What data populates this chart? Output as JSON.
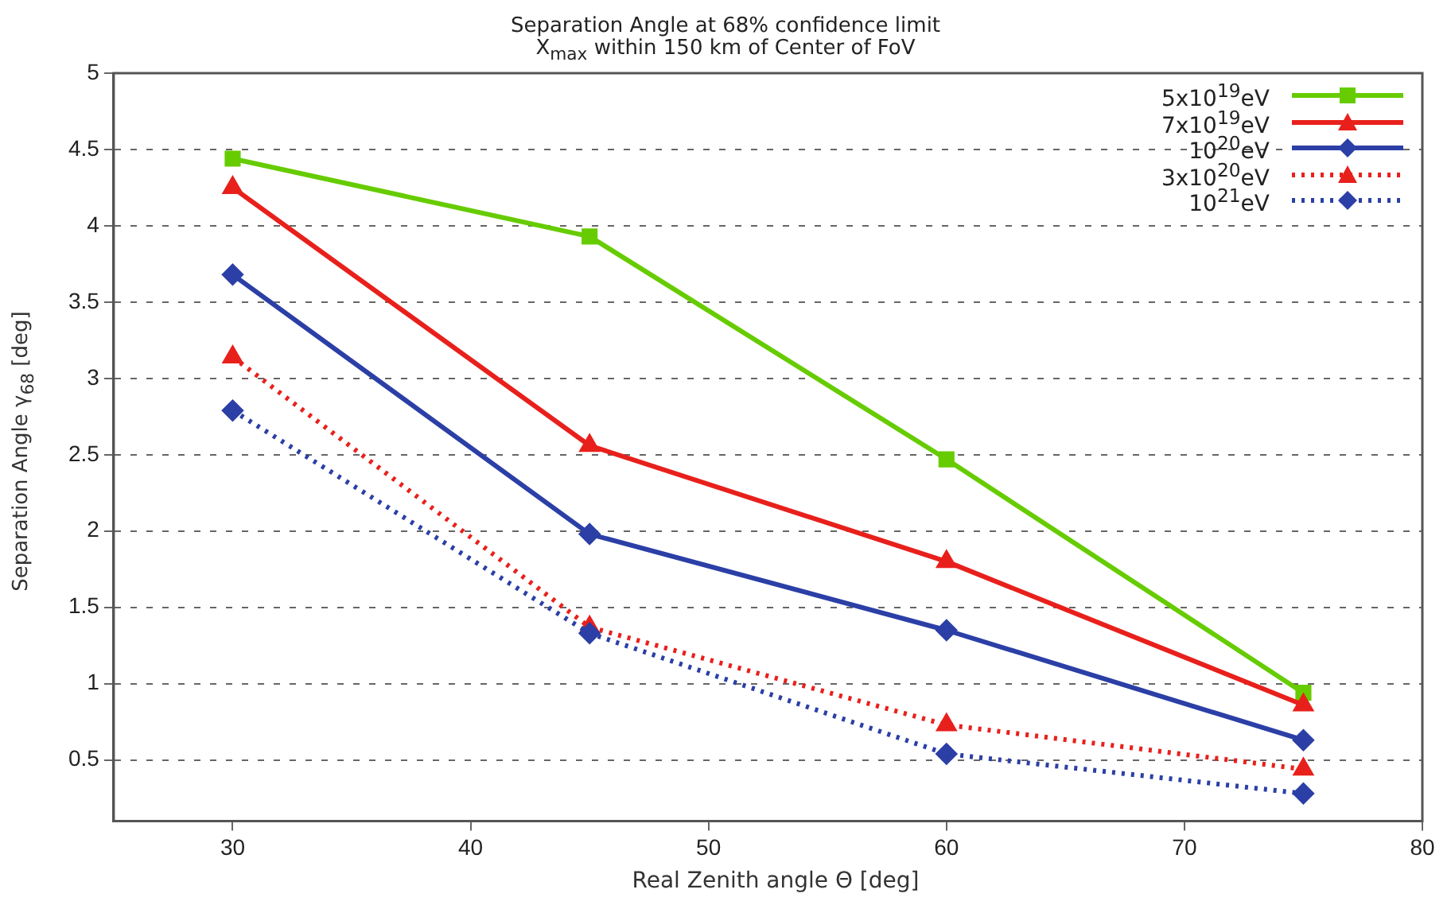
{
  "chart_data": {
    "type": "line",
    "title": "Separation Angle at 68%  confidence  limit",
    "subtitle": "X$_{max}$ within 150 km of Center of FoV",
    "xlabel": "Real Zenith angle Θ [deg]",
    "ylabel": "Separation Angle γ$_{68}$ [deg]",
    "x": [
      30,
      45,
      60,
      75
    ],
    "series": [
      {
        "name": "5x10$^{19}$eV",
        "color": "#66cc00",
        "marker": "square",
        "line_style": "solid",
        "values": [
          4.44,
          3.93,
          2.47,
          0.94
        ]
      },
      {
        "name": "7x10$^{19}$eV",
        "color": "#e8201c",
        "marker": "triangle",
        "line_style": "solid",
        "values": [
          4.25,
          2.56,
          1.8,
          0.86
        ]
      },
      {
        "name": "10$^{20}$eV",
        "color": "#2b3fa6",
        "marker": "diamond",
        "line_style": "solid",
        "values": [
          3.68,
          1.98,
          1.35,
          0.63
        ]
      },
      {
        "name": "3x10$^{20}$eV",
        "color": "#e8201c",
        "marker": "triangle",
        "line_style": "dotted",
        "values": [
          3.14,
          1.37,
          0.73,
          0.44
        ]
      },
      {
        "name": "10$^{21}$eV",
        "color": "#2b3fa6",
        "marker": "diamond",
        "line_style": "dotted",
        "values": [
          2.79,
          1.33,
          0.54,
          0.28
        ]
      }
    ],
    "xlim": [
      25,
      80
    ],
    "xticks": [
      30,
      40,
      50,
      60,
      70,
      80
    ],
    "ylim": [
      0.1,
      5
    ],
    "yticks": [
      0.5,
      1,
      1.5,
      2,
      2.5,
      3,
      3.5,
      4,
      4.5,
      5
    ],
    "grid": "y",
    "legend": "top right"
  }
}
